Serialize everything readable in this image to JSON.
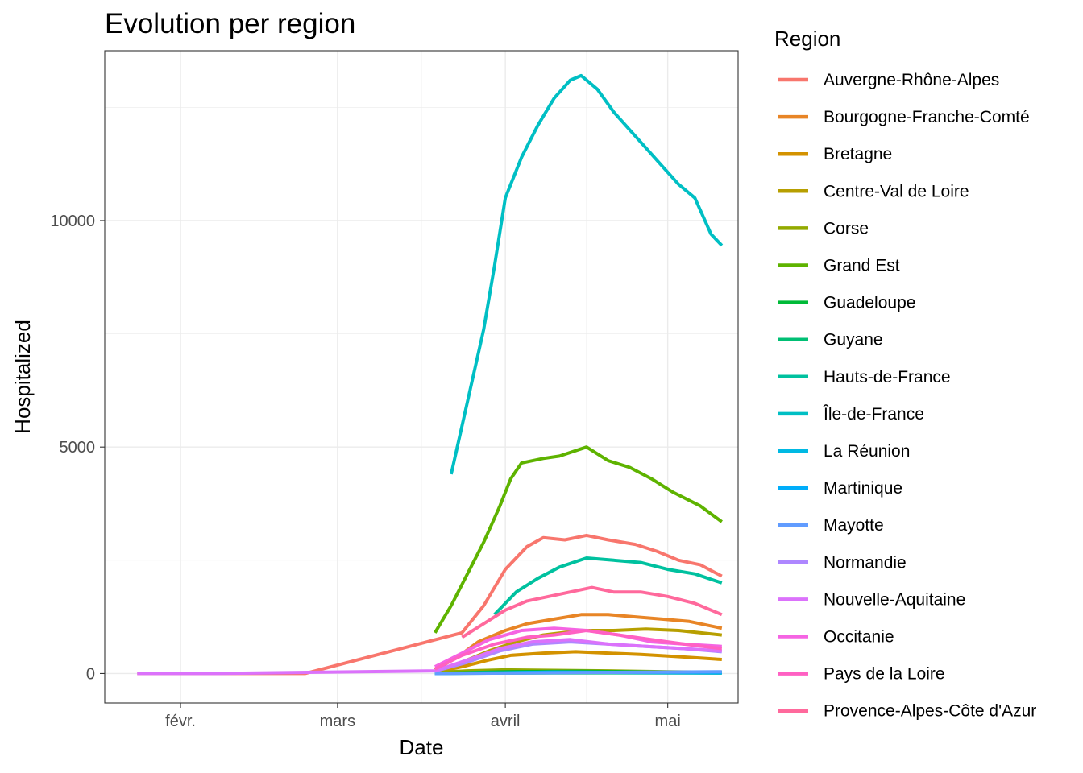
{
  "chart_data": {
    "type": "line",
    "title": "Evolution per region",
    "xlabel": "Date",
    "ylabel": "Hospitalized",
    "x_tick_labels": [
      {
        "label": "févr.",
        "date": "2020-02-01"
      },
      {
        "label": "mars",
        "date": "2020-03-01"
      },
      {
        "label": "avril",
        "date": "2020-04-01"
      },
      {
        "label": "mai",
        "date": "2020-05-01"
      }
    ],
    "y_ticks": [
      0,
      5000,
      10000
    ],
    "xlim": [
      "2020-01-18",
      "2020-05-14"
    ],
    "ylim": [
      -650,
      13750
    ],
    "grid": true,
    "legend_title": "Region",
    "legend_position": "right",
    "series": [
      {
        "name": "Auvergne-Rhône-Alpes",
        "color": "#F8766D",
        "points": [
          [
            "2020-01-24",
            0
          ],
          [
            "2020-02-24",
            0
          ],
          [
            "2020-03-24",
            900
          ],
          [
            "2020-03-28",
            1500
          ],
          [
            "2020-04-01",
            2300
          ],
          [
            "2020-04-05",
            2800
          ],
          [
            "2020-04-08",
            3000
          ],
          [
            "2020-04-12",
            2950
          ],
          [
            "2020-04-16",
            3050
          ],
          [
            "2020-04-20",
            2950
          ],
          [
            "2020-04-25",
            2850
          ],
          [
            "2020-04-29",
            2700
          ],
          [
            "2020-05-03",
            2500
          ],
          [
            "2020-05-07",
            2400
          ],
          [
            "2020-05-11",
            2150
          ]
        ]
      },
      {
        "name": "Bourgogne-Franche-Comté",
        "color": "#E88526",
        "points": [
          [
            "2020-03-19",
            80
          ],
          [
            "2020-03-23",
            350
          ],
          [
            "2020-03-27",
            700
          ],
          [
            "2020-04-01",
            950
          ],
          [
            "2020-04-05",
            1100
          ],
          [
            "2020-04-10",
            1200
          ],
          [
            "2020-04-15",
            1300
          ],
          [
            "2020-04-20",
            1300
          ],
          [
            "2020-04-25",
            1250
          ],
          [
            "2020-04-30",
            1200
          ],
          [
            "2020-05-05",
            1150
          ],
          [
            "2020-05-11",
            1000
          ]
        ]
      },
      {
        "name": "Bretagne",
        "color": "#D39200",
        "points": [
          [
            "2020-03-19",
            30
          ],
          [
            "2020-03-24",
            150
          ],
          [
            "2020-03-29",
            300
          ],
          [
            "2020-04-02",
            400
          ],
          [
            "2020-04-08",
            450
          ],
          [
            "2020-04-14",
            480
          ],
          [
            "2020-04-20",
            450
          ],
          [
            "2020-04-26",
            420
          ],
          [
            "2020-05-02",
            380
          ],
          [
            "2020-05-07",
            340
          ],
          [
            "2020-05-11",
            310
          ]
        ]
      },
      {
        "name": "Centre-Val de Loire",
        "color": "#B79F00",
        "points": [
          [
            "2020-03-19",
            40
          ],
          [
            "2020-03-24",
            250
          ],
          [
            "2020-03-29",
            500
          ],
          [
            "2020-04-03",
            700
          ],
          [
            "2020-04-08",
            850
          ],
          [
            "2020-04-15",
            950
          ],
          [
            "2020-04-21",
            950
          ],
          [
            "2020-04-27",
            980
          ],
          [
            "2020-05-03",
            950
          ],
          [
            "2020-05-11",
            850
          ]
        ]
      },
      {
        "name": "Corse",
        "color": "#93AA00",
        "points": [
          [
            "2020-03-19",
            20
          ],
          [
            "2020-03-25",
            60
          ],
          [
            "2020-04-01",
            80
          ],
          [
            "2020-04-10",
            70
          ],
          [
            "2020-04-20",
            60
          ],
          [
            "2020-05-01",
            40
          ],
          [
            "2020-05-11",
            30
          ]
        ]
      },
      {
        "name": "Grand Est",
        "color": "#5EB300",
        "points": [
          [
            "2020-03-19",
            900
          ],
          [
            "2020-03-22",
            1500
          ],
          [
            "2020-03-25",
            2200
          ],
          [
            "2020-03-28",
            2900
          ],
          [
            "2020-03-31",
            3700
          ],
          [
            "2020-04-02",
            4300
          ],
          [
            "2020-04-04",
            4650
          ],
          [
            "2020-04-08",
            4750
          ],
          [
            "2020-04-11",
            4800
          ],
          [
            "2020-04-16",
            5000
          ],
          [
            "2020-04-20",
            4700
          ],
          [
            "2020-04-24",
            4550
          ],
          [
            "2020-04-28",
            4300
          ],
          [
            "2020-05-02",
            4000
          ],
          [
            "2020-05-07",
            3700
          ],
          [
            "2020-05-11",
            3350
          ]
        ]
      },
      {
        "name": "Guadeloupe",
        "color": "#00BA38",
        "points": [
          [
            "2020-03-19",
            0
          ],
          [
            "2020-04-01",
            40
          ],
          [
            "2020-04-15",
            50
          ],
          [
            "2020-05-01",
            30
          ],
          [
            "2020-05-11",
            20
          ]
        ]
      },
      {
        "name": "Guyane",
        "color": "#00BF74",
        "points": [
          [
            "2020-03-19",
            0
          ],
          [
            "2020-04-01",
            10
          ],
          [
            "2020-04-20",
            15
          ],
          [
            "2020-05-11",
            10
          ]
        ]
      },
      {
        "name": "Hauts-de-France",
        "color": "#00C19F",
        "points": [
          [
            "2020-03-30",
            1300
          ],
          [
            "2020-04-03",
            1800
          ],
          [
            "2020-04-07",
            2100
          ],
          [
            "2020-04-11",
            2350
          ],
          [
            "2020-04-16",
            2550
          ],
          [
            "2020-04-21",
            2500
          ],
          [
            "2020-04-26",
            2450
          ],
          [
            "2020-05-01",
            2300
          ],
          [
            "2020-05-06",
            2200
          ],
          [
            "2020-05-11",
            2000
          ]
        ]
      },
      {
        "name": "Île-de-France",
        "color": "#00BFC4",
        "points": [
          [
            "2020-03-22",
            4400
          ],
          [
            "2020-03-25",
            6000
          ],
          [
            "2020-03-28",
            7600
          ],
          [
            "2020-03-30",
            9000
          ],
          [
            "2020-04-01",
            10500
          ],
          [
            "2020-04-04",
            11400
          ],
          [
            "2020-04-07",
            12100
          ],
          [
            "2020-04-10",
            12700
          ],
          [
            "2020-04-13",
            13100
          ],
          [
            "2020-04-15",
            13200
          ],
          [
            "2020-04-18",
            12900
          ],
          [
            "2020-04-21",
            12400
          ],
          [
            "2020-04-24",
            12000
          ],
          [
            "2020-04-27",
            11600
          ],
          [
            "2020-04-30",
            11200
          ],
          [
            "2020-05-03",
            10800
          ],
          [
            "2020-05-06",
            10500
          ],
          [
            "2020-05-09",
            9700
          ],
          [
            "2020-05-11",
            9450
          ]
        ]
      },
      {
        "name": "La Réunion",
        "color": "#00B9E3",
        "points": [
          [
            "2020-03-19",
            0
          ],
          [
            "2020-04-10",
            30
          ],
          [
            "2020-05-11",
            20
          ]
        ]
      },
      {
        "name": "Martinique",
        "color": "#00ADFA",
        "points": [
          [
            "2020-03-19",
            0
          ],
          [
            "2020-04-10",
            30
          ],
          [
            "2020-05-11",
            15
          ]
        ]
      },
      {
        "name": "Mayotte",
        "color": "#619CFF",
        "points": [
          [
            "2020-03-19",
            0
          ],
          [
            "2020-04-15",
            20
          ],
          [
            "2020-05-11",
            40
          ]
        ]
      },
      {
        "name": "Normandie",
        "color": "#AE87FF",
        "points": [
          [
            "2020-03-19",
            50
          ],
          [
            "2020-03-25",
            250
          ],
          [
            "2020-03-31",
            500
          ],
          [
            "2020-04-06",
            650
          ],
          [
            "2020-04-13",
            700
          ],
          [
            "2020-04-20",
            650
          ],
          [
            "2020-04-27",
            600
          ],
          [
            "2020-05-04",
            550
          ],
          [
            "2020-05-11",
            480
          ]
        ]
      },
      {
        "name": "Nouvelle-Aquitaine",
        "color": "#DB72FB",
        "points": [
          [
            "2020-01-24",
            0
          ],
          [
            "2020-02-08",
            0
          ],
          [
            "2020-03-19",
            60
          ],
          [
            "2020-03-25",
            300
          ],
          [
            "2020-03-31",
            550
          ],
          [
            "2020-04-06",
            700
          ],
          [
            "2020-04-13",
            750
          ],
          [
            "2020-04-20",
            650
          ],
          [
            "2020-04-27",
            600
          ],
          [
            "2020-05-04",
            550
          ],
          [
            "2020-05-11",
            500
          ]
        ]
      },
      {
        "name": "Occitanie",
        "color": "#F564E3",
        "points": [
          [
            "2020-03-19",
            150
          ],
          [
            "2020-03-24",
            450
          ],
          [
            "2020-03-29",
            750
          ],
          [
            "2020-04-04",
            950
          ],
          [
            "2020-04-10",
            1000
          ],
          [
            "2020-04-16",
            950
          ],
          [
            "2020-04-22",
            850
          ],
          [
            "2020-04-28",
            700
          ],
          [
            "2020-05-04",
            650
          ],
          [
            "2020-05-11",
            600
          ]
        ]
      },
      {
        "name": "Pays de la Loire",
        "color": "#FF61C3",
        "points": [
          [
            "2020-03-19",
            100
          ],
          [
            "2020-03-24",
            400
          ],
          [
            "2020-03-30",
            650
          ],
          [
            "2020-04-05",
            800
          ],
          [
            "2020-04-10",
            850
          ],
          [
            "2020-04-16",
            950
          ],
          [
            "2020-04-22",
            850
          ],
          [
            "2020-04-28",
            750
          ],
          [
            "2020-05-04",
            650
          ],
          [
            "2020-05-11",
            550
          ]
        ]
      },
      {
        "name": "Provence-Alpes-Côte d'Azur",
        "color": "#FF699C",
        "points": [
          [
            "2020-03-24",
            800
          ],
          [
            "2020-03-28",
            1100
          ],
          [
            "2020-04-01",
            1400
          ],
          [
            "2020-04-05",
            1600
          ],
          [
            "2020-04-09",
            1700
          ],
          [
            "2020-04-13",
            1800
          ],
          [
            "2020-04-17",
            1900
          ],
          [
            "2020-04-21",
            1800
          ],
          [
            "2020-04-26",
            1800
          ],
          [
            "2020-05-01",
            1700
          ],
          [
            "2020-05-06",
            1550
          ],
          [
            "2020-05-11",
            1300
          ]
        ]
      }
    ]
  }
}
